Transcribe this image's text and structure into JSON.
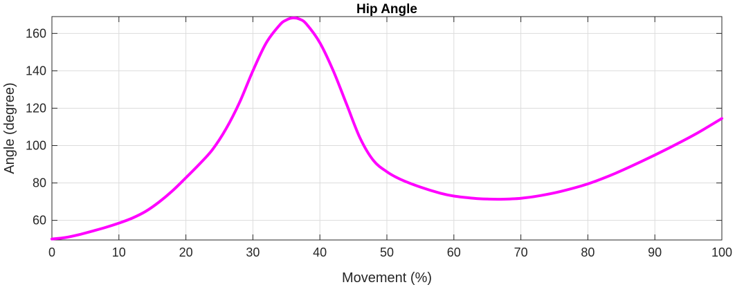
{
  "chart_data": {
    "type": "line",
    "title": "Hip Angle",
    "xlabel": "Movement (%)",
    "ylabel": "Angle (degree)",
    "xlim": [
      0,
      100
    ],
    "ylim": [
      49.5,
      169
    ],
    "xticks": [
      0,
      10,
      20,
      30,
      40,
      50,
      60,
      70,
      80,
      90,
      100
    ],
    "yticks": [
      60,
      80,
      100,
      120,
      140,
      160
    ],
    "grid": true,
    "box": true,
    "legend": "none",
    "series": [
      {
        "color": "#ff00ff",
        "x": [
          0,
          2,
          4,
          6,
          8,
          10,
          12,
          14,
          16,
          18,
          20,
          22,
          24,
          26,
          28,
          30,
          32,
          34,
          35,
          36,
          37,
          38,
          40,
          42,
          44,
          46,
          48,
          50,
          52,
          55,
          58,
          60,
          63,
          65,
          67,
          70,
          73,
          76,
          80,
          84,
          88,
          92,
          96,
          100
        ],
        "y": [
          50,
          50.8,
          52.3,
          54.2,
          56.2,
          58.5,
          61.2,
          64.8,
          69.8,
          75.8,
          82.8,
          90,
          98,
          109,
          123,
          140,
          155,
          164.5,
          167.2,
          168.3,
          167.6,
          165,
          155,
          140,
          122,
          104,
          92,
          86,
          82,
          77.8,
          74.5,
          73,
          71.8,
          71.4,
          71.3,
          71.8,
          73.3,
          75.5,
          79.5,
          85,
          91.5,
          98.5,
          106,
          114.5
        ]
      }
    ]
  }
}
